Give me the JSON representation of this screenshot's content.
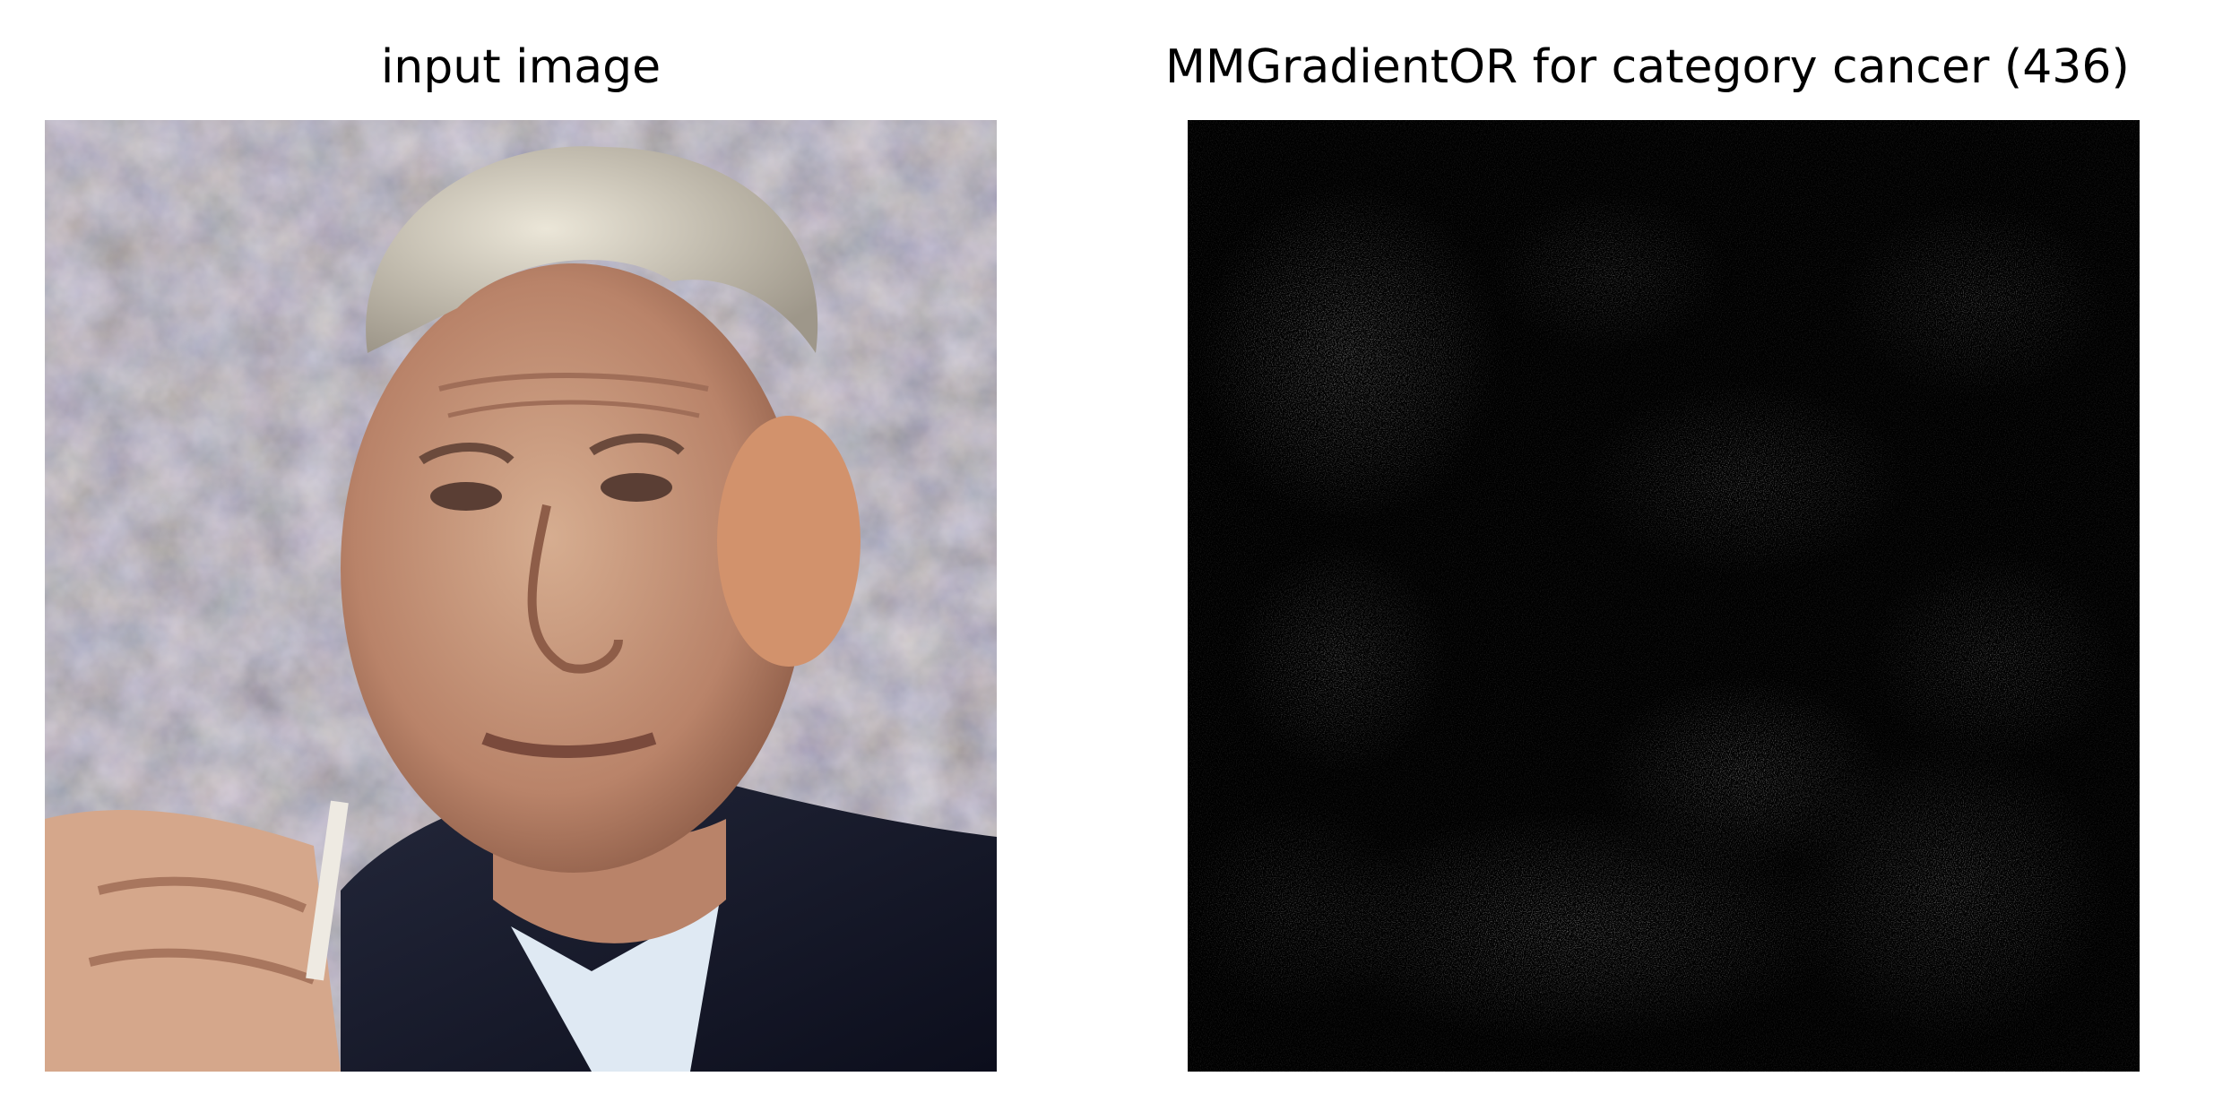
{
  "figure": {
    "panels": [
      {
        "title": "input image",
        "content": "photo",
        "colors": {
          "background": "#8b7f75",
          "hair": "#d9d3c6",
          "skin": "#c99d83",
          "jacket": "#1a1d2e",
          "shirt": "#dfe9f3"
        }
      },
      {
        "title": "MMGradientOR for category cancer (436)",
        "content": "grayscale-saliency-map",
        "colors": {
          "background": "#000000",
          "highlight": "#ffffff"
        }
      }
    ]
  }
}
